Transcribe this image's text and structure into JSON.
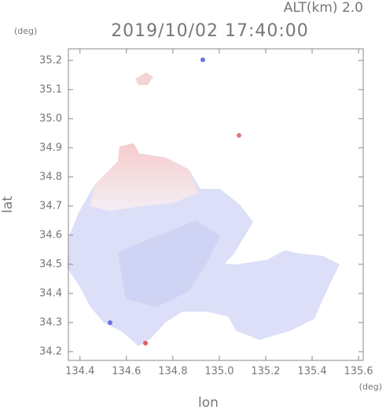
{
  "chart_data": {
    "type": "field",
    "title": "2019/10/02 17:40:00",
    "subtitle": "ALT(km) 2.0",
    "x_label": "lon",
    "y_label": "lat",
    "x_unit": "(deg)",
    "y_unit": "(deg)",
    "xlim": [
      134.35,
      135.62
    ],
    "xticks": [
      134.4,
      134.6,
      134.8,
      {
        "value": 135.0,
        "label": "135.0"
      },
      135.2,
      135.4,
      135.6
    ],
    "ylim": [
      34.17,
      35.24
    ],
    "yticks": [
      34.2,
      34.3,
      34.4,
      34.5,
      34.6,
      34.7,
      34.8,
      34.9,
      {
        "value": 35.0,
        "label": "35.0"
      },
      35.1,
      35.2
    ]
  }
}
